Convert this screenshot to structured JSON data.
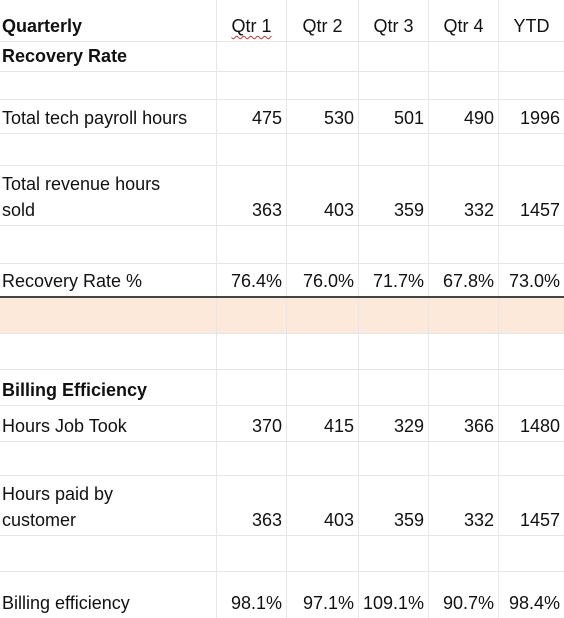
{
  "header": {
    "label": "Quarterly",
    "columns": [
      "Qtr 1",
      "Qtr 2",
      "Qtr 3",
      "Qtr 4",
      "YTD"
    ]
  },
  "recovery": {
    "section_title": "Recovery Rate",
    "rows": [
      {
        "label": "Total tech payroll hours",
        "values": [
          "475",
          "530",
          "501",
          "490",
          "1996"
        ]
      },
      {
        "label": "Total revenue hours sold",
        "values": [
          "363",
          "403",
          "359",
          "332",
          "1457"
        ]
      },
      {
        "label": "Recovery Rate %",
        "values": [
          "76.4%",
          "76.0%",
          "71.7%",
          "67.8%",
          "73.0%"
        ]
      }
    ]
  },
  "billing": {
    "section_title": "Billing Efficiency",
    "rows": [
      {
        "label": "Hours Job Took",
        "values": [
          "370",
          "415",
          "329",
          "366",
          "1480"
        ]
      },
      {
        "label": "Hours paid by customer",
        "values": [
          "363",
          "403",
          "359",
          "332",
          "1457"
        ]
      },
      {
        "label": "Billing efficiency",
        "values": [
          "98.1%",
          "97.1%",
          "109.1%",
          "90.7%",
          "98.4%"
        ]
      }
    ]
  },
  "colors": {
    "highlight_row": "#fde9d9",
    "grid": "#e7e7e7",
    "rule": "#444444"
  }
}
